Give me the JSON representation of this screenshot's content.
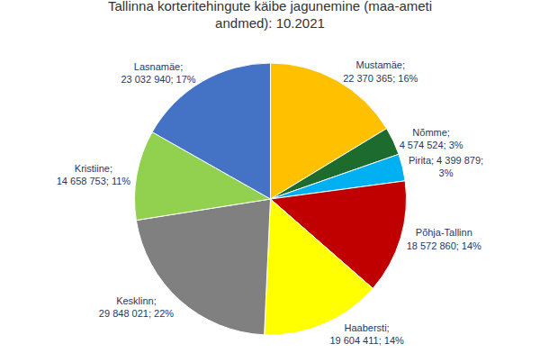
{
  "chart_data": {
    "type": "pie",
    "title": "Tallinna korteritehingute käibe jagunemine (maa-ameti\nandmed): 10.2021",
    "categories": [
      "Mustamäe;\n22 370 365; 16%",
      "Nõmme;\n4 574 524; 3%",
      "Pirita; 4 399 879;\n3%",
      "Põhja-Tallinn\n18 572 860; 14%",
      "Haabersti;\n19 604 411; 14%",
      "Kesklinn;\n29 848 021; 22%",
      "Kristiine;\n14 658 753; 11%",
      "Lasnamäe;\n23 032 940; 17%"
    ],
    "values": [
      22370365,
      4574524,
      4399879,
      18572860,
      19604411,
      29848021,
      14658753,
      23032940
    ],
    "colors": [
      "#FFC000",
      "#1E6B2E",
      "#00B0F0",
      "#C00000",
      "#FFFF00",
      "#808080",
      "#92D050",
      "#4472C4"
    ],
    "legend": false
  }
}
